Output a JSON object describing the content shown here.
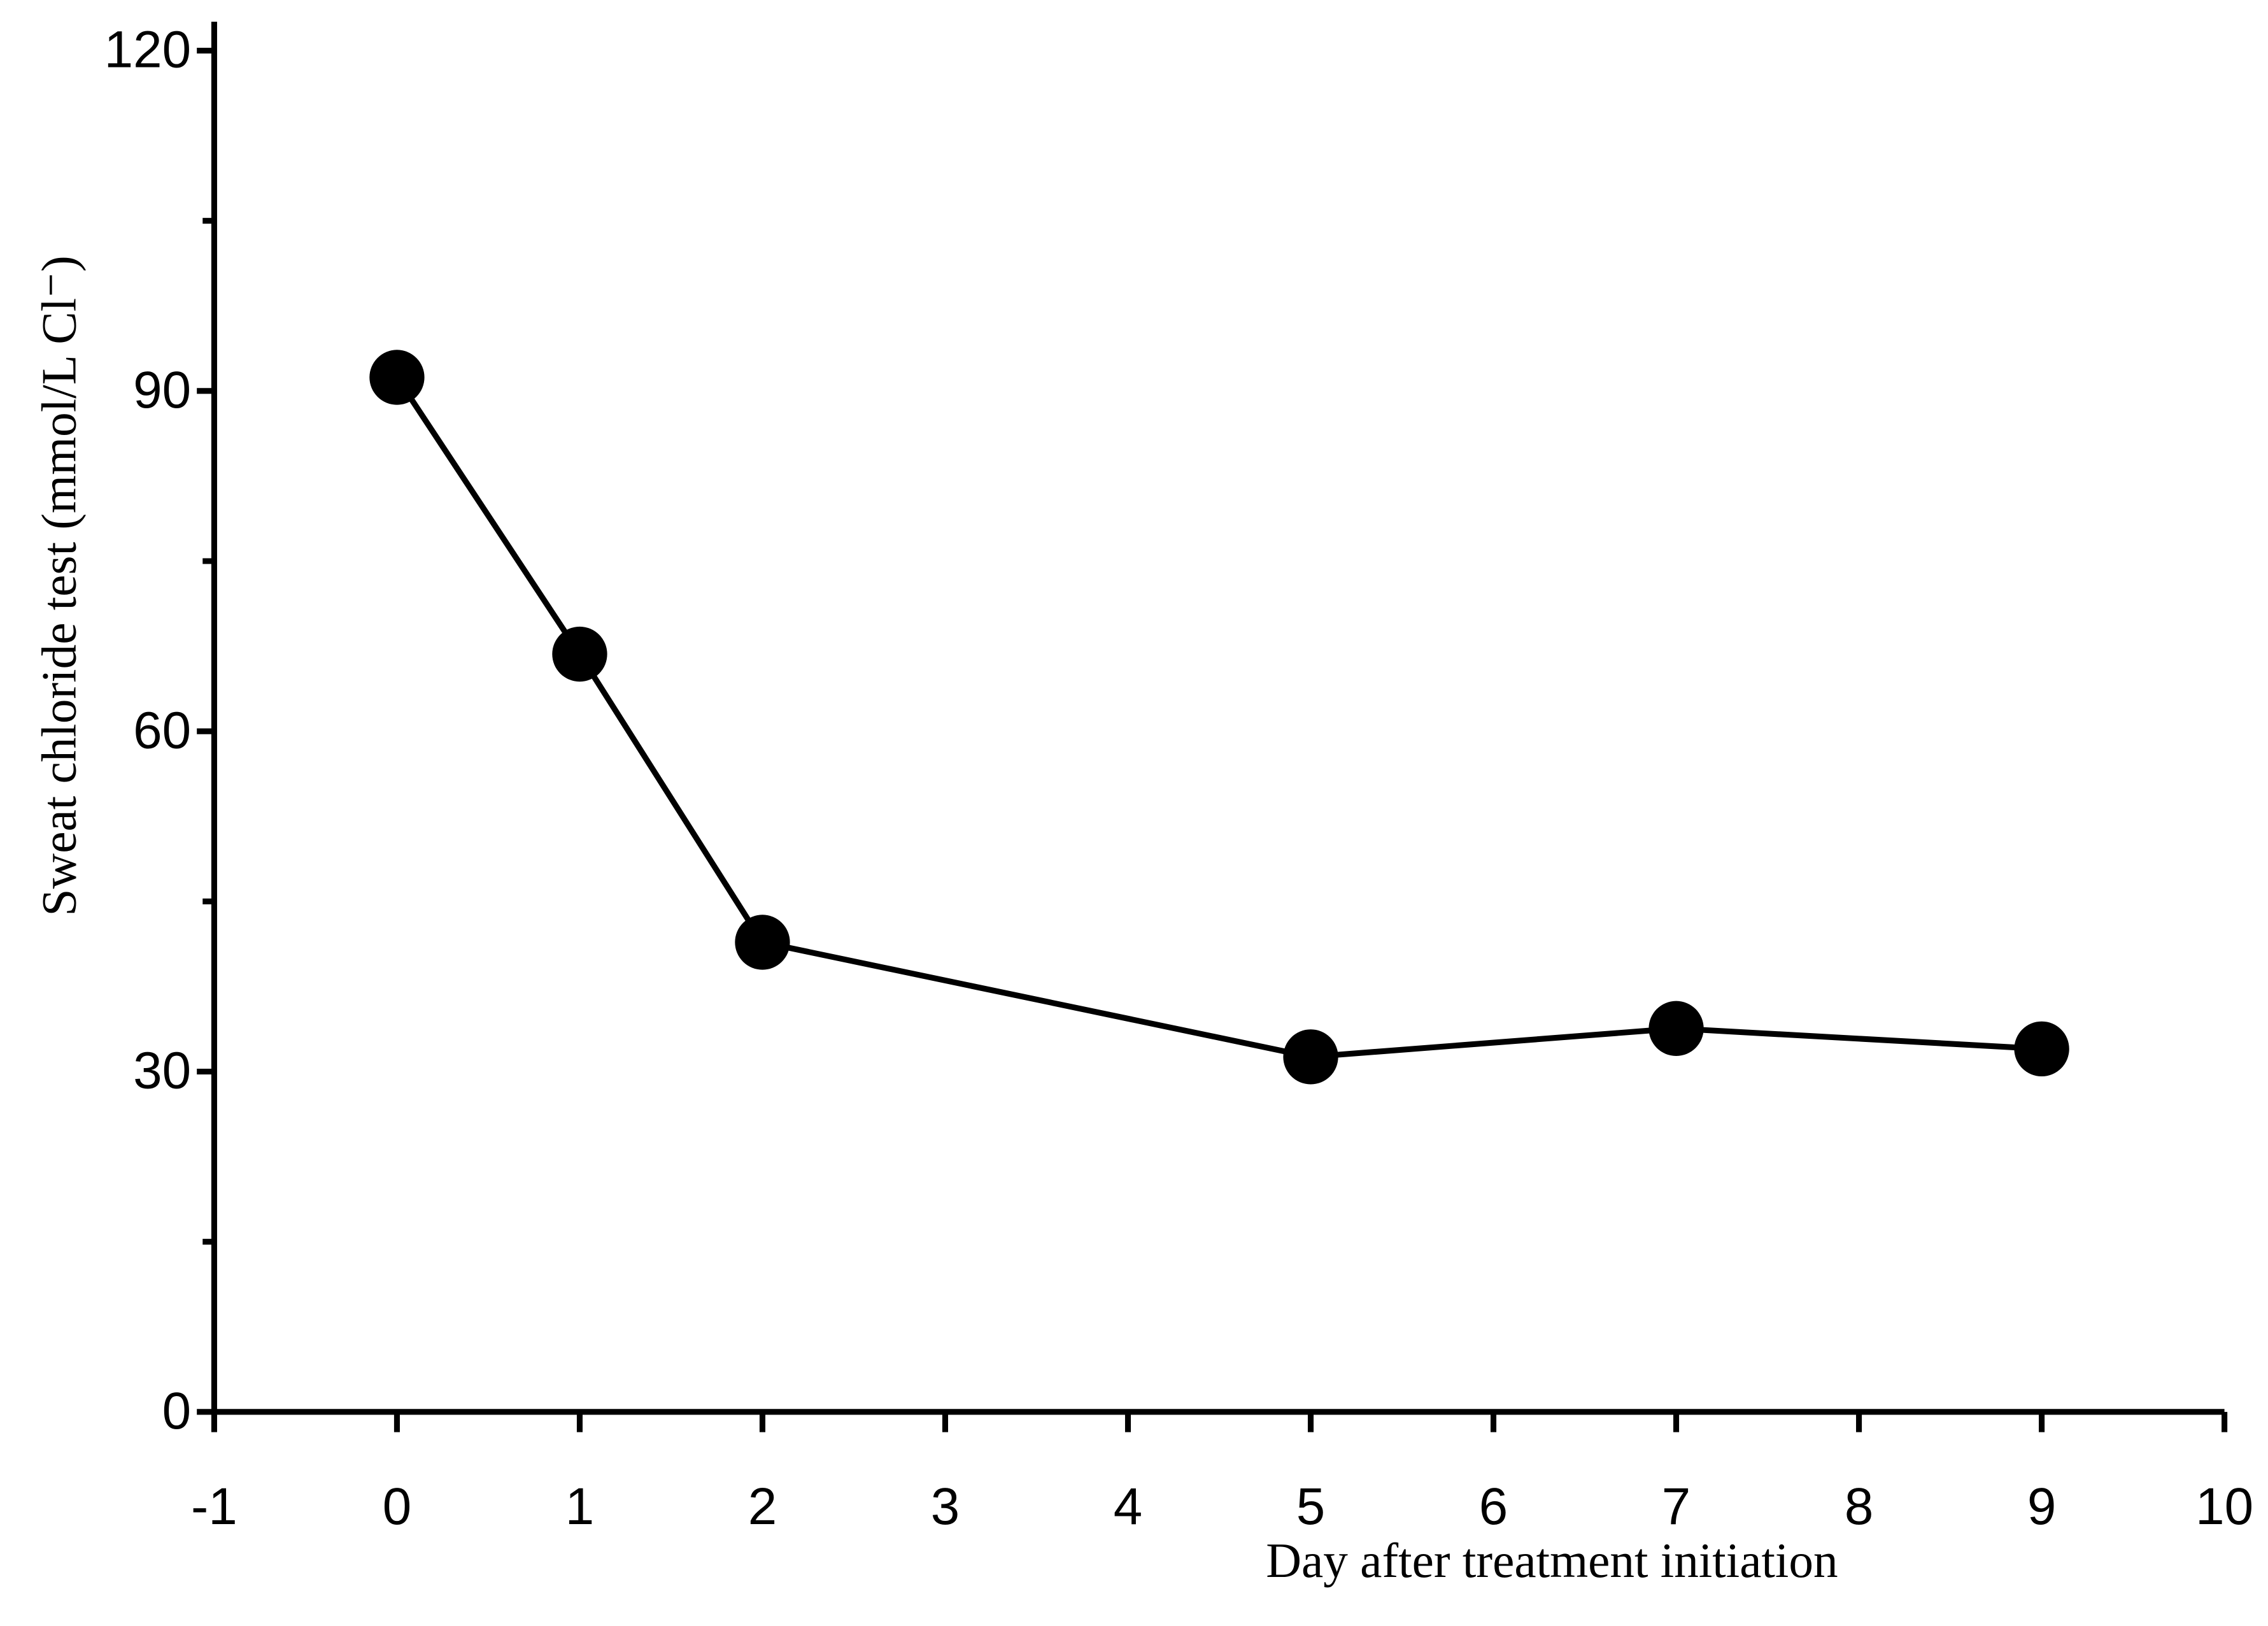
{
  "chart_data": {
    "type": "line",
    "xlabel": "Day after treatment initiation",
    "ylabel": "Sweat chloride test (mmol/L Cl⁻)",
    "x": [
      0,
      1,
      2,
      5,
      7,
      9
    ],
    "y": [
      91.2,
      66.8,
      41.4,
      31.3,
      33.8,
      32.0
    ],
    "color": "#000000",
    "xlim": [
      -1,
      10
    ],
    "xticks": [
      -1,
      0,
      1,
      2,
      3,
      4,
      5,
      6,
      7,
      8,
      9,
      10
    ],
    "ylim": [
      0,
      120
    ],
    "yticks": [
      0,
      30,
      60,
      90,
      120
    ],
    "yminorticks": [
      15,
      45,
      75,
      105
    ]
  }
}
